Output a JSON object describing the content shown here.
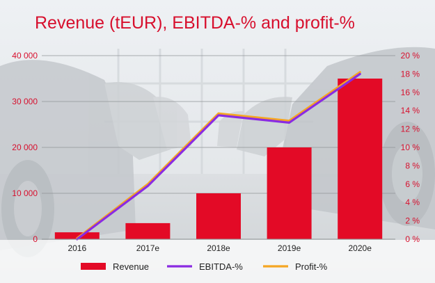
{
  "chart_data": {
    "type": "bar+line",
    "title": "Revenue (tEUR), EBITDA-% and profit-%",
    "categories": [
      "2016",
      "2017e",
      "2018e",
      "2019e",
      "2020e"
    ],
    "series": [
      {
        "name": "Revenue",
        "type": "bar",
        "axis": "left",
        "color": "#e30a26",
        "values": [
          1500,
          3500,
          10000,
          20000,
          35000
        ]
      },
      {
        "name": "EBITDA-%",
        "type": "line",
        "axis": "right",
        "color": "#8a2be2",
        "values": [
          0,
          5.8,
          13.5,
          12.7,
          18
        ]
      },
      {
        "name": "Profit-%",
        "type": "line",
        "axis": "right",
        "color": "#f5a623",
        "values": [
          0.1,
          6.0,
          13.7,
          12.9,
          18.2
        ]
      }
    ],
    "y_left": {
      "range": [
        0,
        40000
      ],
      "ticks": [
        0,
        10000,
        20000,
        30000,
        40000
      ],
      "tick_labels": [
        "0",
        "10 000",
        "20 000",
        "30 000",
        "40 000"
      ]
    },
    "y_right": {
      "range": [
        0,
        20
      ],
      "ticks": [
        0,
        2,
        4,
        6,
        8,
        10,
        12,
        14,
        16,
        18,
        20
      ],
      "tick_labels": [
        "0 %",
        "2 %",
        "4 %",
        "6 %",
        "8 %",
        "10 %",
        "12 %",
        "14 %",
        "16 %",
        "18 %",
        "20 %"
      ]
    },
    "grid": true,
    "legend_position": "bottom"
  }
}
